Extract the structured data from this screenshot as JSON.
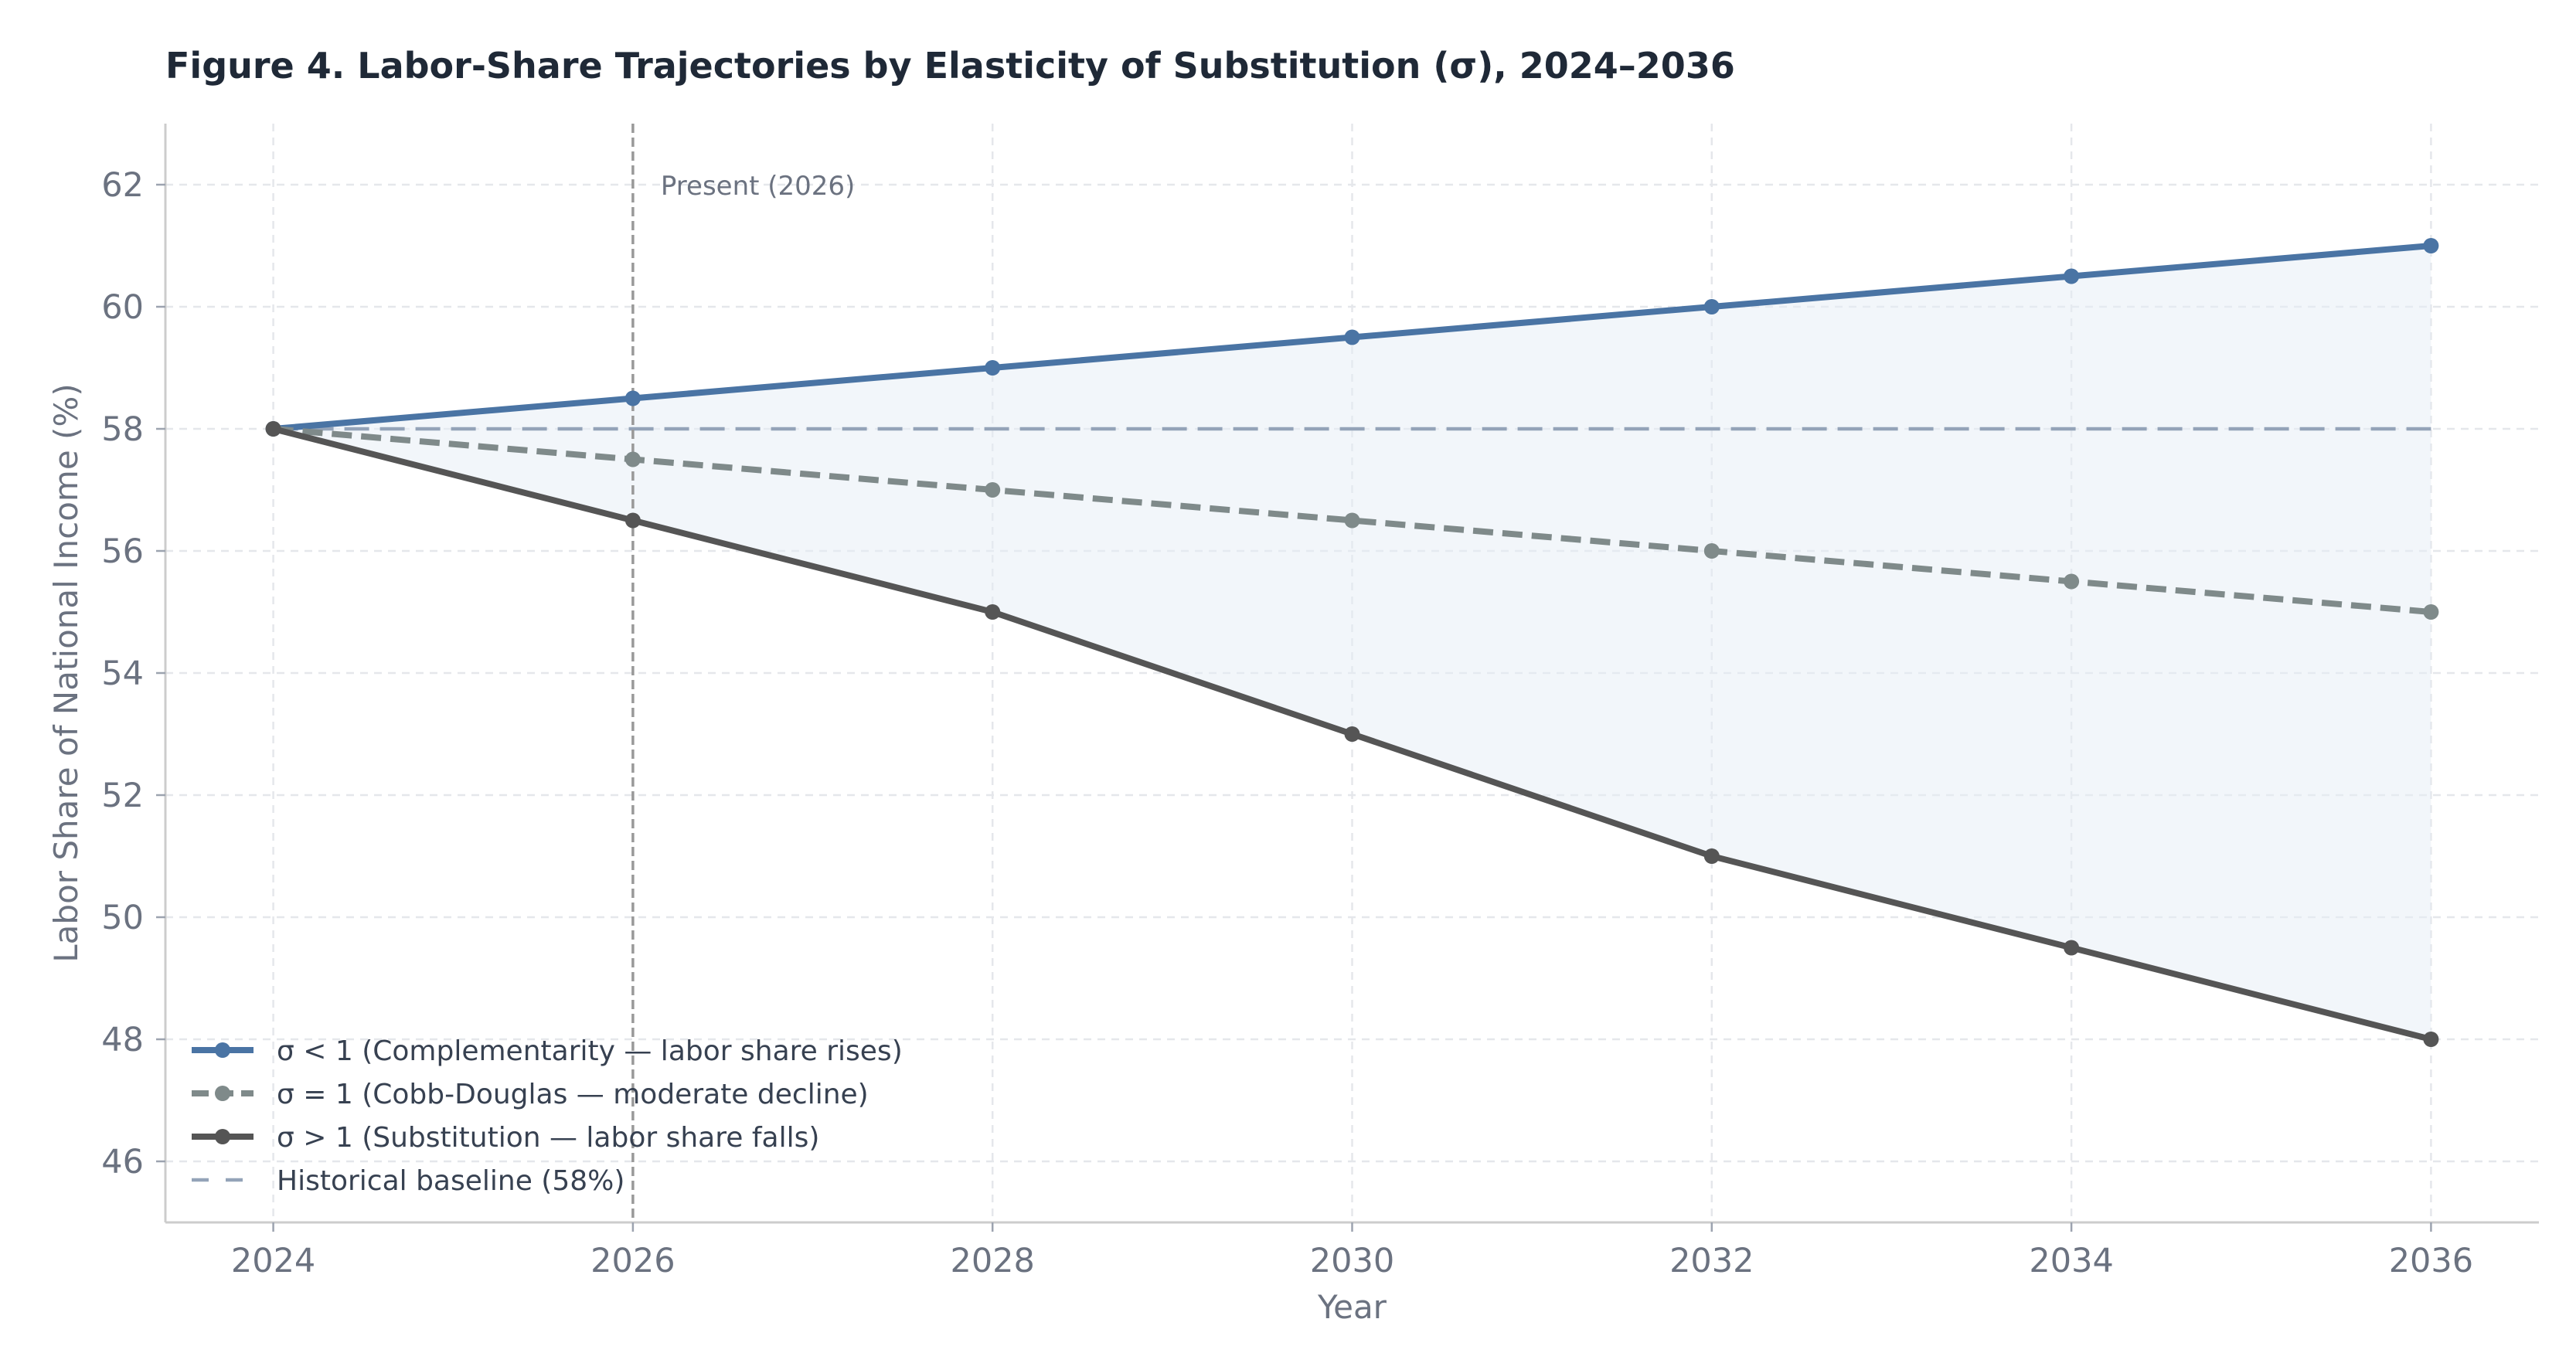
{
  "chart_data": {
    "type": "line",
    "title": "Figure 4.  Labor-Share Trajectories by Elasticity of Substitution (σ), 2024–2036",
    "xlabel": "Year",
    "ylabel": "Labor Share of National Income (%)",
    "xlim": [
      2023.4,
      2036.6
    ],
    "ylim": [
      45,
      63
    ],
    "x": [
      2024,
      2026,
      2028,
      2030,
      2032,
      2034,
      2036
    ],
    "xticks": [
      2024,
      2026,
      2028,
      2030,
      2032,
      2034,
      2036
    ],
    "yticks": [
      46,
      48,
      50,
      52,
      54,
      56,
      58,
      60,
      62
    ],
    "grid": true,
    "legend_position": "lower-left",
    "series": [
      {
        "key": "complement",
        "name": "σ < 1  (Complementarity — labor share rises)",
        "values": [
          58,
          58.5,
          59,
          59.5,
          60,
          60.5,
          61
        ],
        "color": "#4a74a4",
        "dash": "solid"
      },
      {
        "key": "cobb",
        "name": "σ = 1  (Cobb-Douglas — moderate decline)",
        "values": [
          58,
          57.5,
          57,
          56.5,
          56,
          55.5,
          55
        ],
        "color": "#7f8a8a",
        "dash": "dashed"
      },
      {
        "key": "subst",
        "name": "σ > 1  (Substitution — labor share falls)",
        "values": [
          58,
          56.5,
          55,
          53,
          51,
          49.5,
          48
        ],
        "color": "#555555",
        "dash": "solid"
      }
    ],
    "baseline": {
      "name": "Historical baseline (58%)",
      "value": 58,
      "color": "#94a3b8"
    },
    "present_marker": {
      "label": "Present (2026)",
      "x": 2026,
      "color": "#999999"
    },
    "shaded_band": {
      "between": [
        "complement",
        "subst"
      ],
      "color": "#e6eef5"
    }
  }
}
